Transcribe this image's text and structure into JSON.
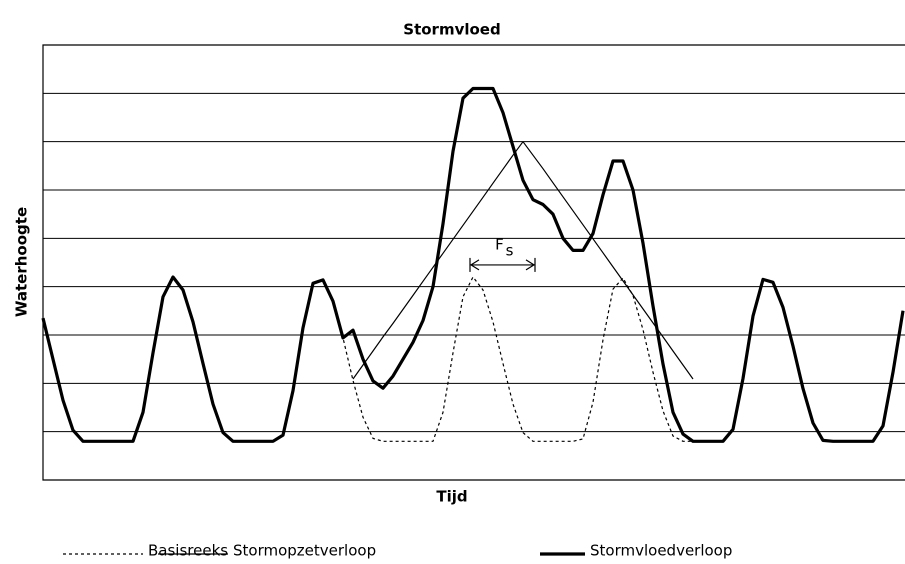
{
  "chart_data": {
    "type": "line",
    "title": "Stormvloed",
    "x_label": "Tijd",
    "y_label": "Waterhoogte",
    "xlim": [
      0,
      86.2
    ],
    "ylim": [
      0,
      9
    ],
    "yticks": [
      1,
      2,
      3,
      4,
      5,
      6,
      7,
      8
    ],
    "grid": true,
    "legend": "bottom",
    "x": [
      0,
      1,
      2,
      3,
      4,
      5,
      6,
      7,
      8,
      9,
      10,
      11,
      12,
      13,
      14,
      15,
      16,
      17,
      18,
      19,
      20,
      21,
      22,
      23,
      24,
      25,
      26,
      27,
      28,
      29,
      30,
      31,
      32,
      33,
      34,
      35,
      36,
      37,
      38,
      39,
      40,
      41,
      42,
      43,
      44,
      45,
      46,
      47,
      48,
      49,
      50,
      51,
      52,
      53,
      54,
      55,
      56,
      57,
      58,
      59,
      60,
      61,
      62,
      63,
      64,
      65,
      66,
      67,
      68,
      69,
      70,
      71,
      72,
      73,
      74,
      75,
      76,
      77,
      78,
      79,
      80,
      81,
      82,
      83,
      84,
      85,
      86
    ],
    "series": [
      {
        "name": "Basisreeks",
        "color": "#000000",
        "style": "dotted",
        "width": 1.2,
        "values": [
          3.35,
          2.5,
          1.65,
          1.03,
          0.8,
          0.8,
          0.8,
          0.8,
          0.8,
          0.8,
          1.4,
          2.63,
          3.79,
          4.2,
          3.93,
          3.27,
          2.41,
          1.57,
          0.98,
          0.8,
          0.8,
          0.8,
          0.8,
          0.8,
          0.93,
          1.85,
          3.15,
          4.07,
          4.14,
          3.7,
          2.94,
          2.06,
          1.3,
          0.86,
          0.8,
          0.8,
          0.8,
          0.8,
          0.8,
          0.8,
          1.4,
          2.63,
          3.79,
          4.2,
          3.93,
          3.27,
          2.41,
          1.57,
          0.98,
          0.8,
          0.8,
          0.8,
          0.8,
          0.8,
          0.85,
          1.61,
          2.9,
          3.95,
          4.18,
          3.82,
          3.11,
          2.23,
          1.43,
          0.91,
          0.8,
          0.8,
          0.8,
          0.8,
          0.8,
          1.05,
          2.1,
          3.39,
          4.15,
          4.09,
          3.57,
          2.77,
          1.89,
          1.18,
          0.82,
          0.8,
          0.8,
          0.8,
          0.8,
          0.8,
          1.12,
          2.23,
          3.5
        ]
      },
      {
        "name": "Stormopzetverloop",
        "color": "#000000",
        "style": "solid",
        "width": 1.2,
        "values": [
          null,
          null,
          null,
          null,
          null,
          null,
          null,
          null,
          null,
          null,
          null,
          null,
          null,
          null,
          null,
          null,
          null,
          null,
          null,
          null,
          null,
          null,
          null,
          null,
          null,
          null,
          null,
          null,
          null,
          null,
          null,
          2.09,
          2.38,
          2.67,
          2.96,
          3.24,
          3.53,
          3.82,
          4.11,
          4.4,
          4.69,
          4.98,
          5.27,
          5.56,
          5.85,
          6.14,
          6.43,
          6.72,
          7.0,
          6.72,
          6.44,
          6.15,
          5.86,
          5.57,
          5.28,
          4.99,
          4.7,
          4.41,
          4.12,
          3.83,
          3.54,
          3.25,
          2.96,
          2.67,
          2.38,
          2.09,
          null,
          null,
          null,
          null,
          null,
          null,
          null,
          null,
          null,
          null,
          null,
          null,
          null,
          null,
          null,
          null,
          null,
          null,
          null,
          null,
          null
        ]
      },
      {
        "name": "Stormvloedverloop",
        "color": "#000000",
        "style": "solid",
        "width": 3.2,
        "values": [
          3.35,
          2.5,
          1.65,
          1.03,
          0.8,
          0.8,
          0.8,
          0.8,
          0.8,
          0.8,
          1.4,
          2.63,
          3.79,
          4.2,
          3.93,
          3.27,
          2.41,
          1.57,
          0.98,
          0.8,
          0.8,
          0.8,
          0.8,
          0.8,
          0.93,
          1.85,
          3.15,
          4.07,
          4.14,
          3.7,
          2.94,
          3.1,
          2.5,
          2.05,
          1.9,
          2.15,
          2.5,
          2.85,
          3.3,
          4.0,
          5.3,
          6.8,
          7.9,
          8.1,
          8.1,
          8.1,
          7.6,
          6.9,
          6.2,
          5.8,
          5.7,
          5.5,
          5.0,
          4.75,
          4.75,
          5.1,
          5.9,
          6.6,
          6.6,
          6.0,
          4.9,
          3.6,
          2.4,
          1.4,
          0.95,
          0.8,
          0.8,
          0.8,
          0.8,
          1.05,
          2.1,
          3.39,
          4.15,
          4.09,
          3.57,
          2.77,
          1.89,
          1.18,
          0.82,
          0.8,
          0.8,
          0.8,
          0.8,
          0.8,
          1.12,
          2.23,
          3.5
        ]
      }
    ],
    "annotation": {
      "text": "F",
      "subscript": "s",
      "x_range": [
        42.7,
        49.2
      ],
      "y": 4.45
    }
  }
}
